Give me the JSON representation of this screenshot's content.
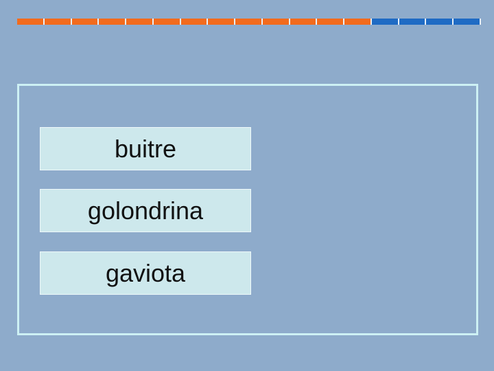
{
  "options": [
    "buitre",
    "golondrina",
    "gaviota"
  ]
}
